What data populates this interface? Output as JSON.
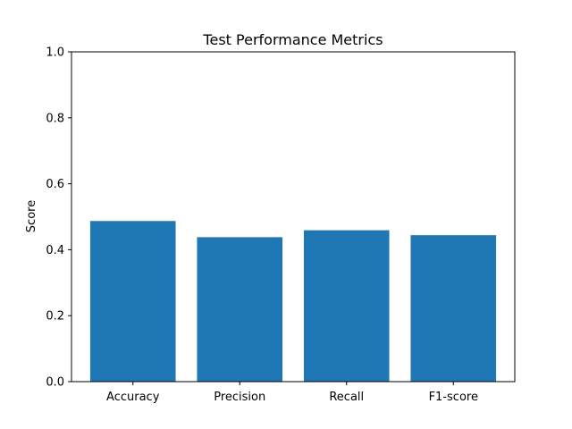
{
  "chart_data": {
    "type": "bar",
    "title": "Test Performance Metrics",
    "xlabel": "",
    "ylabel": "Score",
    "categories": [
      "Accuracy",
      "Precision",
      "Recall",
      "F1-score"
    ],
    "values": [
      0.487,
      0.438,
      0.459,
      0.444
    ],
    "ylim": [
      0,
      1.0
    ],
    "yticks": [
      0.0,
      0.2,
      0.4,
      0.6,
      0.8,
      1.0
    ],
    "ytick_labels": [
      "0.0",
      "0.2",
      "0.4",
      "0.6",
      "0.8",
      "1.0"
    ],
    "bar_color": "#1f77b4",
    "grid": false,
    "legend": "none"
  }
}
